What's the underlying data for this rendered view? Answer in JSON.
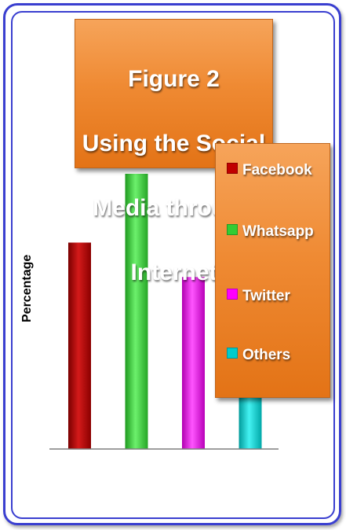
{
  "chart_data": {
    "type": "bar",
    "title": "Figure 2\nUsing the Social Media through Internet",
    "xlabel": "",
    "ylabel": "Percentage",
    "categories": [
      "Facebook",
      "Whatsapp",
      "Twitter",
      "Others"
    ],
    "values": [
      60,
      80,
      50,
      20
    ],
    "ylim": [
      0,
      80
    ],
    "colors": [
      "#c00000",
      "#33cc33",
      "#ff00ff",
      "#00cccc"
    ],
    "legend_position": "right",
    "grid": false
  },
  "title_lines": [
    "Figure 2",
    "Using the Social",
    "Media through",
    "Internet"
  ],
  "legend": [
    {
      "label": "Facebook",
      "color": "#c00000"
    },
    {
      "label": "Whatsapp",
      "color": "#33cc33"
    },
    {
      "label": "Twitter",
      "color": "#ff00ff"
    },
    {
      "label": "Others",
      "color": "#00cccc"
    }
  ]
}
